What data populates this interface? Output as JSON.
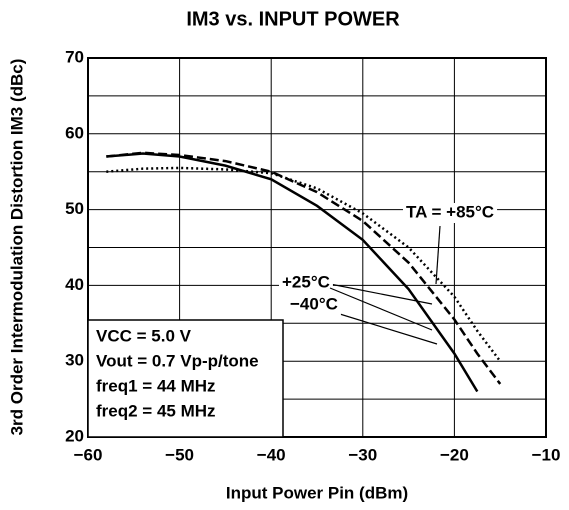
{
  "chart_data": {
    "type": "line",
    "title": "IM3 vs. INPUT POWER",
    "x_label": "Input Power Pin (dBm)",
    "y_label": "3rd Order Intermodulation Distortion IM3 (dBc)",
    "x": [
      -58,
      -54,
      -50,
      -45,
      -40,
      -35,
      -30,
      -25,
      -20,
      -17.5,
      -15
    ],
    "series": [
      {
        "name": "−40°C",
        "color": "#000000",
        "style": "solid",
        "values": [
          57,
          57.4,
          57,
          55.8,
          54,
          50.5,
          46,
          39.5,
          31,
          26,
          null
        ]
      },
      {
        "name": "+25°C",
        "color": "#000000",
        "style": "dashed",
        "values": [
          57,
          57.5,
          57.2,
          56.4,
          55,
          52.3,
          48.5,
          43,
          35.5,
          31,
          27
        ]
      },
      {
        "name": "TA = +85°C",
        "color": "#000000",
        "style": "dotted",
        "values": [
          55,
          55.4,
          55.5,
          55.3,
          54.8,
          52.8,
          49.5,
          45,
          38.5,
          34,
          30
        ]
      }
    ],
    "xlim": [
      -60,
      -10
    ],
    "xticks": [
      {
        "value": -60,
        "label": "−60"
      },
      {
        "value": -50,
        "label": "−50"
      },
      {
        "value": -40,
        "label": "−40"
      },
      {
        "value": -30,
        "label": "−30"
      },
      {
        "value": -20,
        "label": "−20"
      },
      {
        "value": -10,
        "label": "−10"
      }
    ],
    "ylim": [
      20,
      70
    ],
    "yticks": [
      20,
      30,
      40,
      50,
      60,
      70
    ],
    "y_minor_ticks": [
      25,
      35,
      45,
      55,
      65
    ],
    "grid": true,
    "annotations": [
      "VCC = 5.0 V",
      "Vout = 0.7 Vp-p/tone",
      "freq1 = 44 MHz",
      "freq2 = 45 MHz"
    ]
  }
}
